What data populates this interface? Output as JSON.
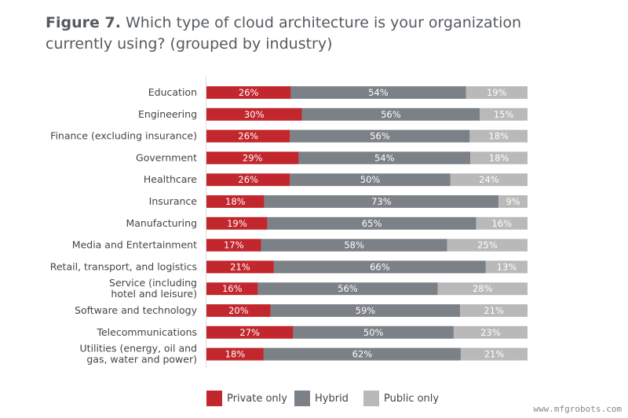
{
  "chart_data": {
    "type": "bar",
    "orientation": "horizontal",
    "stacked": true,
    "title_prefix": "Figure 7.",
    "title": "Which type of cloud architecture is your organization currently using? (grouped by industry)",
    "categories": [
      [
        "Education"
      ],
      [
        "Engineering"
      ],
      [
        "Finance (excluding insurance)"
      ],
      [
        "Government"
      ],
      [
        "Healthcare"
      ],
      [
        "Insurance"
      ],
      [
        "Manufacturing"
      ],
      [
        "Media and Entertainment"
      ],
      [
        "Retail, transport, and logistics"
      ],
      [
        "Service (including",
        "hotel and leisure)"
      ],
      [
        "Software and technology"
      ],
      [
        "Telecommunications"
      ],
      [
        "Utilities (energy, oil and",
        "gas, water and power)"
      ]
    ],
    "series": [
      {
        "name": "Private only",
        "color": "#c1272d",
        "values": [
          26,
          30,
          26,
          29,
          26,
          18,
          19,
          17,
          21,
          16,
          20,
          27,
          18
        ]
      },
      {
        "name": "Hybrid",
        "color": "#7b8187",
        "values": [
          54,
          56,
          56,
          54,
          50,
          73,
          65,
          58,
          66,
          56,
          59,
          50,
          62
        ]
      },
      {
        "name": "Public only",
        "color": "#b9b9b9",
        "values": [
          19,
          15,
          18,
          18,
          24,
          9,
          16,
          25,
          13,
          28,
          21,
          23,
          21
        ]
      }
    ],
    "value_suffix": "%",
    "legend_placement": "bottom",
    "grid": false
  },
  "watermark": "www.mfgrobots.com"
}
